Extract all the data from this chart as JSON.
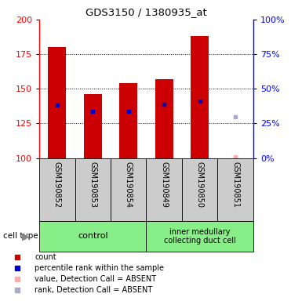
{
  "title": "GDS3150 / 1380935_at",
  "samples": [
    "GSM190852",
    "GSM190853",
    "GSM190854",
    "GSM190849",
    "GSM190850",
    "GSM190851"
  ],
  "bar_bottoms": [
    100,
    100,
    100,
    100,
    100,
    100
  ],
  "bar_tops": [
    180,
    146,
    154,
    157,
    188,
    100
  ],
  "blue_markers": [
    138,
    134,
    134,
    139,
    141,
    null
  ],
  "absent_value": [
    null,
    null,
    null,
    null,
    null,
    101
  ],
  "absent_rank": [
    null,
    null,
    null,
    null,
    null,
    130
  ],
  "bar_color": "#cc0000",
  "blue_color": "#0000cc",
  "absent_value_color": "#ffaaaa",
  "absent_rank_color": "#aaaacc",
  "ylim_left": [
    100,
    200
  ],
  "ylim_right": [
    0,
    100
  ],
  "yticks_left": [
    100,
    125,
    150,
    175,
    200
  ],
  "yticks_right": [
    0,
    25,
    50,
    75,
    100
  ],
  "ytick_labels_right": [
    "0%",
    "25%",
    "50%",
    "75%",
    "100%"
  ],
  "control_label": "control",
  "inner_label": "inner medullary\ncollecting duct cell",
  "group_color": "#88ee88",
  "cell_type_label": "cell type",
  "grid_color": "#000000",
  "sample_bg_color": "#cccccc",
  "bar_width": 0.5,
  "legend_items": [
    {
      "color": "#cc0000",
      "label": "count"
    },
    {
      "color": "#0000cc",
      "label": "percentile rank within the sample"
    },
    {
      "color": "#ffaaaa",
      "label": "value, Detection Call = ABSENT"
    },
    {
      "color": "#aaaacc",
      "label": "rank, Detection Call = ABSENT"
    }
  ]
}
